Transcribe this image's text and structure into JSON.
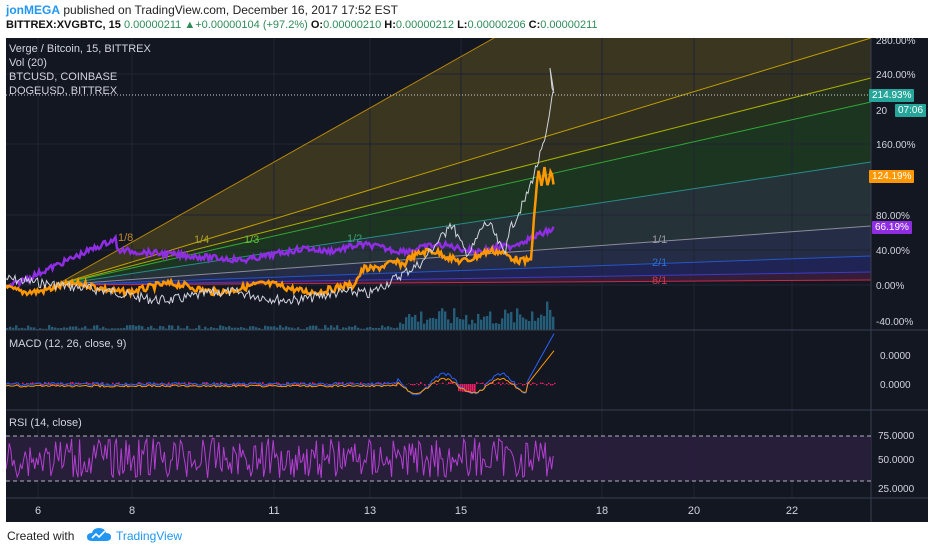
{
  "header": {
    "author": "jonMEGA",
    "published": "published on TradingView.com, December 16, 2017 17:52 EST",
    "symbol": "BITTREX:XVGBTC, 15",
    "price": "0.00000211",
    "change_arrow": "▲",
    "change": "+0.00000104 (+97.2%)",
    "o_label": "O:",
    "o": "0.00000210",
    "h_label": "H:",
    "h": "0.00000212",
    "l_label": "L:",
    "l": "0.00000206",
    "c_label": "C:",
    "c": "0.00000211"
  },
  "legend": {
    "main": "Verge / Bitcoin, 15, BITTREX",
    "vol": "Vol (20)",
    "cmp1": "BTCUSD, COINBASE",
    "cmp2": "DOGEUSD, BITTREX"
  },
  "fan_labels": [
    "1/8",
    "1/4",
    "1/3",
    "1/2",
    "1/1",
    "2/1",
    "8/1"
  ],
  "price_axis": [
    "280.00%",
    "240.00%",
    "20",
    "160.00%",
    "80.00%",
    "40.00%",
    "0.00%",
    "-40.00%"
  ],
  "price_tags": {
    "last": "214.93%",
    "countdown": "07:06",
    "btc": "124.19%",
    "doge": "66.19%"
  },
  "macd": {
    "label": "MACD (12, 26, close, 9)",
    "axis": [
      "0.0000",
      "0.0000"
    ]
  },
  "rsi": {
    "label": "RSI (14, close)",
    "axis": [
      "75.0000",
      "50.0000",
      "25.0000"
    ]
  },
  "time_axis": [
    "6",
    "8",
    "11",
    "13",
    "15",
    "18",
    "20",
    "22"
  ],
  "footer": {
    "created": "Created with",
    "brand": "TradingView"
  },
  "colors": {
    "background": "#131722",
    "main_series": "#d1d4dc",
    "btc": "#ff9800",
    "doge": "#8e2de2",
    "macd": "#2962ff",
    "signal": "#ff9800",
    "hist_neg": "#e91e63",
    "rsi": "#9c27b0",
    "brand": "#2196f3"
  }
}
